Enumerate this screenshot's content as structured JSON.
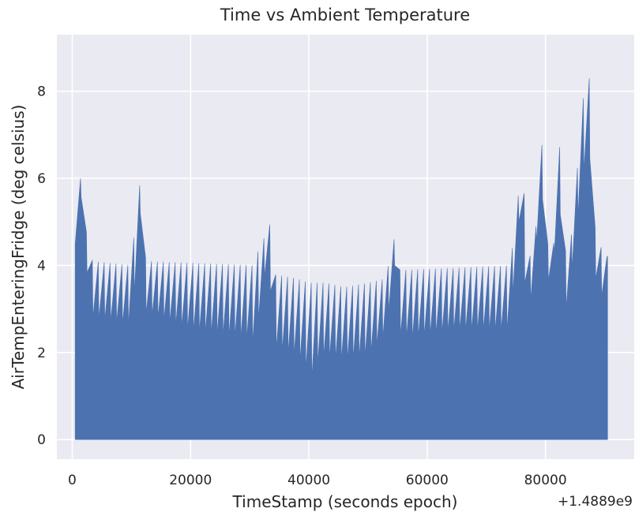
{
  "chart_data": {
    "type": "area",
    "title": "Time vs Ambient Temperature",
    "xlabel": "TimeStamp (seconds epoch)",
    "ylabel": "AirTempEnteringFridge (deg celsius)",
    "x_offset_label": "+1.4889e9",
    "xlim": [
      -2600,
      95000
    ],
    "ylim": [
      -0.45,
      9.3
    ],
    "x_ticks": [
      0,
      20000,
      40000,
      60000,
      80000
    ],
    "x_tick_labels": [
      "0",
      "20000",
      "40000",
      "60000",
      "80000"
    ],
    "y_ticks": [
      0,
      2,
      4,
      6,
      8
    ],
    "y_tick_labels": [
      "0",
      "2",
      "4",
      "6",
      "8"
    ],
    "grid": true,
    "background": "#eaeaf2",
    "fill_color": "#4c72b0",
    "series": [
      {
        "x_start": 500,
        "x_end": 90500,
        "baseline": 0,
        "cycle_period": 1000,
        "upper_envelope": [
          [
            500,
            4.8
          ],
          [
            900,
            5.4
          ],
          [
            1300,
            5.9
          ],
          [
            1700,
            6.3
          ],
          [
            2000,
            6.5
          ],
          [
            2300,
            5.0
          ],
          [
            2600,
            4.3
          ],
          [
            3500,
            4.1
          ],
          [
            10000,
            4.0
          ],
          [
            10500,
            4.8
          ],
          [
            11000,
            5.6
          ],
          [
            11500,
            5.9
          ],
          [
            12000,
            4.5
          ],
          [
            12500,
            4.1
          ],
          [
            31000,
            4.0
          ],
          [
            31500,
            4.4
          ],
          [
            32200,
            4.6
          ],
          [
            33000,
            4.7
          ],
          [
            33500,
            5.0
          ],
          [
            34000,
            3.8
          ],
          [
            38000,
            3.7
          ],
          [
            40000,
            3.6
          ],
          [
            43000,
            3.6
          ],
          [
            46000,
            3.5
          ],
          [
            50000,
            3.6
          ],
          [
            53000,
            3.7
          ],
          [
            53700,
            4.2
          ],
          [
            54400,
            4.6
          ],
          [
            54800,
            4.7
          ],
          [
            55200,
            3.9
          ],
          [
            57000,
            3.9
          ],
          [
            74000,
            4.0
          ],
          [
            74800,
            4.8
          ],
          [
            75400,
            5.6
          ],
          [
            76000,
            6.3
          ],
          [
            76500,
            5.5
          ],
          [
            77000,
            4.3
          ],
          [
            78000,
            4.1
          ],
          [
            78600,
            5.3
          ],
          [
            79300,
            6.7
          ],
          [
            79600,
            6.9
          ],
          [
            80000,
            5.0
          ],
          [
            80800,
            4.0
          ],
          [
            81500,
            4.6
          ],
          [
            82000,
            6.4
          ],
          [
            82500,
            6.8
          ],
          [
            83000,
            5.0
          ],
          [
            83600,
            4.0
          ],
          [
            84500,
            4.8
          ],
          [
            85500,
            6.4
          ],
          [
            86500,
            8.0
          ],
          [
            87000,
            8.7
          ],
          [
            87300,
            8.9
          ],
          [
            87700,
            6.5
          ],
          [
            88200,
            5.0
          ],
          [
            89000,
            4.5
          ],
          [
            90000,
            4.3
          ],
          [
            90500,
            4.2
          ]
        ],
        "lower_envelope": [
          [
            500,
            4.5
          ],
          [
            1300,
            5.4
          ],
          [
            2000,
            6.0
          ],
          [
            2600,
            3.4
          ],
          [
            3500,
            2.8
          ],
          [
            10000,
            2.6
          ],
          [
            10800,
            3.8
          ],
          [
            11500,
            5.2
          ],
          [
            12500,
            2.9
          ],
          [
            20000,
            2.5
          ],
          [
            30000,
            2.3
          ],
          [
            31000,
            2.1
          ],
          [
            32000,
            3.4
          ],
          [
            33200,
            4.2
          ],
          [
            34000,
            2.1
          ],
          [
            38000,
            1.9
          ],
          [
            40500,
            1.4
          ],
          [
            42000,
            1.9
          ],
          [
            46000,
            1.8
          ],
          [
            50000,
            1.9
          ],
          [
            53000,
            2.4
          ],
          [
            54500,
            4.0
          ],
          [
            55200,
            2.4
          ],
          [
            57000,
            2.3
          ],
          [
            65000,
            2.5
          ],
          [
            74000,
            2.5
          ],
          [
            75500,
            5.0
          ],
          [
            76500,
            3.6
          ],
          [
            77500,
            3.2
          ],
          [
            79400,
            5.7
          ],
          [
            80800,
            3.1
          ],
          [
            82300,
            5.6
          ],
          [
            83600,
            2.8
          ],
          [
            85500,
            5.1
          ],
          [
            87300,
            7.0
          ],
          [
            88500,
            3.7
          ],
          [
            89500,
            3.3
          ],
          [
            90500,
            3.0
          ]
        ]
      }
    ]
  }
}
